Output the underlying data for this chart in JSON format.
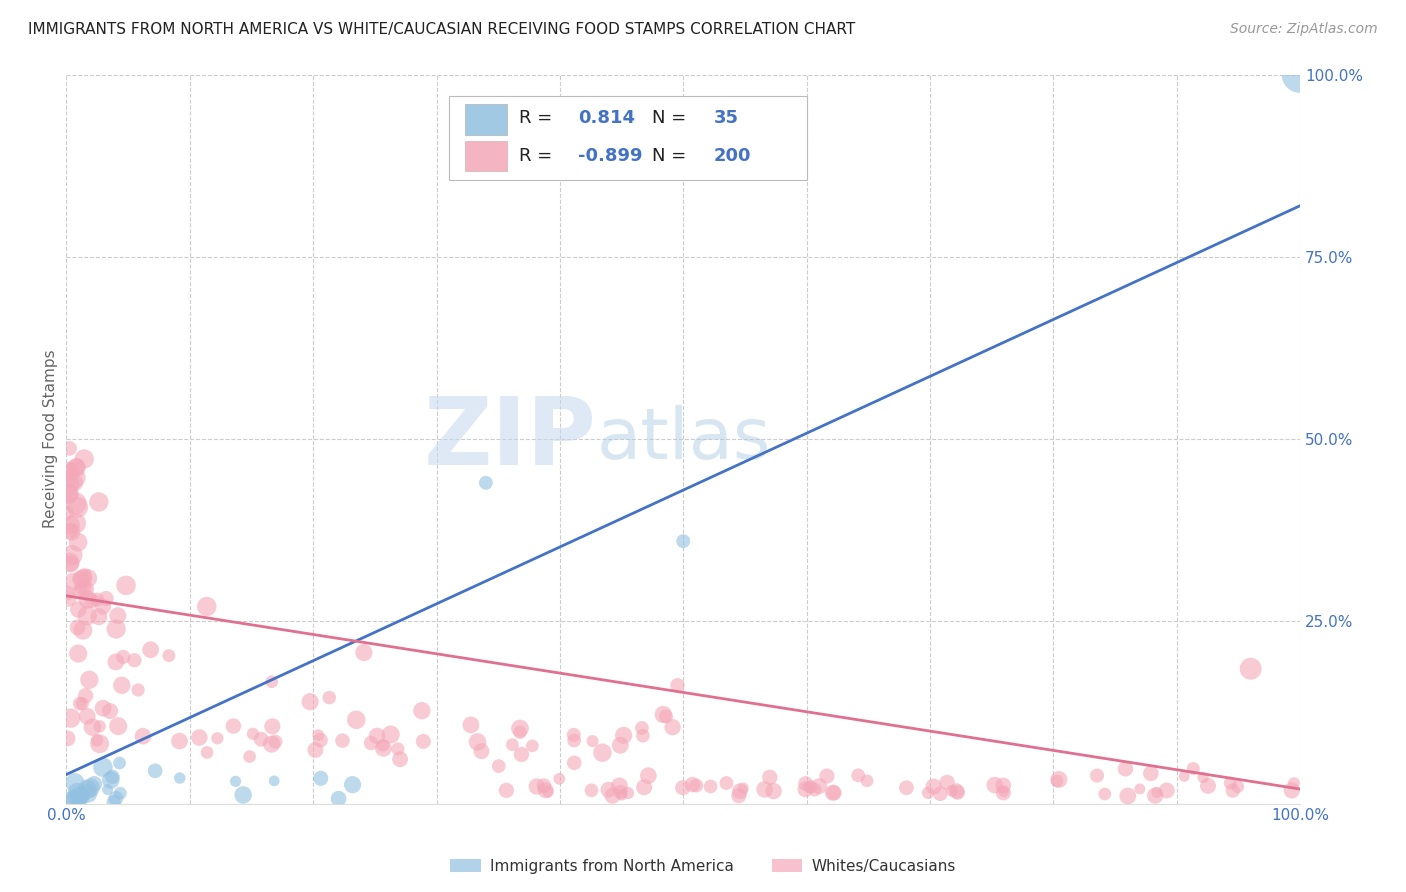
{
  "title": "IMMIGRANTS FROM NORTH AMERICA VS WHITE/CAUCASIAN RECEIVING FOOD STAMPS CORRELATION CHART",
  "source": "Source: ZipAtlas.com",
  "ylabel": "Receiving Food Stamps",
  "blue_R": 0.814,
  "blue_N": 35,
  "pink_R": -0.899,
  "pink_N": 200,
  "blue_label": "Immigrants from North America",
  "pink_label": "Whites/Caucasians",
  "watermark_zip": "ZIP",
  "watermark_atlas": "atlas",
  "title_color": "#222222",
  "source_color": "#999999",
  "blue_color": "#92c0e0",
  "blue_line_color": "#4472c4",
  "pink_color": "#f4a7b8",
  "pink_line_color": "#e07090",
  "axis_label_color": "#4472c4",
  "ylabel_color": "#666666",
  "grid_color": "#cccccc",
  "background_color": "#ffffff",
  "blue_trend_x0": 0.0,
  "blue_trend_y0": 0.04,
  "blue_trend_x1": 1.0,
  "blue_trend_y1": 0.82,
  "pink_trend_x0": 0.0,
  "pink_trend_y0": 0.285,
  "pink_trend_x1": 1.0,
  "pink_trend_y1": 0.02,
  "xlim": [
    0.0,
    1.0
  ],
  "ylim": [
    0.0,
    1.0
  ],
  "yticks": [
    0.0,
    0.25,
    0.5,
    0.75,
    1.0
  ],
  "ytick_labels": [
    "",
    "25.0%",
    "50.0%",
    "75.0%",
    "100.0%"
  ],
  "title_fontsize": 11,
  "source_fontsize": 10,
  "legend_fontsize": 13,
  "axis_tick_fontsize": 11,
  "ylabel_fontsize": 11
}
